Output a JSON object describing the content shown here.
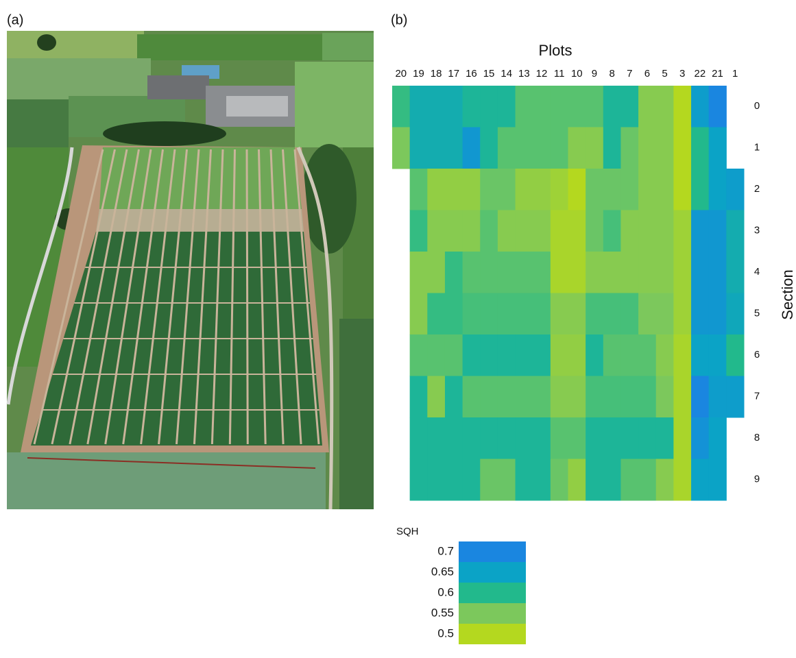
{
  "panel_labels": [
    "(a)",
    "(b)"
  ],
  "chart_data": {
    "type": "heatmap",
    "title": "Plots",
    "y_label": "Section",
    "x_categories": [
      "20",
      "19",
      "18",
      "17",
      "16",
      "15",
      "14",
      "13",
      "12",
      "11",
      "10",
      "9",
      "8",
      "7",
      "6",
      "5",
      "3",
      "22",
      "21",
      "1"
    ],
    "y_categories": [
      "0",
      "1",
      "2",
      "3",
      "4",
      "5",
      "6",
      "7",
      "8",
      "9"
    ],
    "values": [
      [
        0.59,
        0.63,
        0.63,
        0.63,
        0.61,
        0.61,
        0.61,
        0.57,
        0.57,
        0.57,
        0.57,
        0.57,
        0.61,
        0.61,
        0.54,
        0.54,
        0.5,
        0.66,
        0.7,
        null
      ],
      [
        0.55,
        0.63,
        0.63,
        0.63,
        0.67,
        0.61,
        0.57,
        0.57,
        0.57,
        0.57,
        0.54,
        0.54,
        0.61,
        0.56,
        0.54,
        0.54,
        0.5,
        0.6,
        0.65,
        null
      ],
      [
        null,
        0.57,
        0.53,
        0.53,
        0.53,
        0.56,
        0.56,
        0.53,
        0.53,
        0.52,
        0.5,
        0.56,
        0.56,
        0.56,
        0.54,
        0.54,
        0.5,
        0.6,
        0.65,
        0.66
      ],
      [
        null,
        0.59,
        0.54,
        0.54,
        0.54,
        0.57,
        0.54,
        0.54,
        0.54,
        0.51,
        0.51,
        0.56,
        0.58,
        0.54,
        0.54,
        0.54,
        0.52,
        0.67,
        0.67,
        0.63
      ],
      [
        null,
        0.54,
        0.54,
        0.59,
        0.57,
        0.57,
        0.57,
        0.57,
        0.57,
        0.51,
        0.51,
        0.54,
        0.54,
        0.54,
        0.54,
        0.54,
        0.52,
        0.67,
        0.67,
        0.63
      ],
      [
        null,
        0.54,
        0.59,
        0.59,
        0.58,
        0.58,
        0.58,
        0.58,
        0.58,
        0.54,
        0.54,
        0.58,
        0.58,
        0.58,
        0.55,
        0.55,
        0.52,
        0.67,
        0.67,
        0.64
      ],
      [
        null,
        0.57,
        0.57,
        0.57,
        0.61,
        0.61,
        0.61,
        0.61,
        0.61,
        0.53,
        0.53,
        0.61,
        0.57,
        0.57,
        0.57,
        0.54,
        0.51,
        0.65,
        0.65,
        0.6
      ],
      [
        null,
        0.61,
        0.54,
        0.61,
        0.57,
        0.57,
        0.57,
        0.57,
        0.57,
        0.54,
        0.54,
        0.58,
        0.58,
        0.58,
        0.58,
        0.55,
        0.51,
        0.7,
        0.66,
        0.66
      ],
      [
        null,
        0.61,
        0.61,
        0.61,
        0.61,
        0.61,
        0.61,
        0.61,
        0.61,
        0.57,
        0.57,
        0.61,
        0.61,
        0.61,
        0.61,
        0.61,
        0.51,
        0.68,
        0.65,
        null
      ],
      [
        null,
        0.61,
        0.61,
        0.61,
        0.61,
        0.56,
        0.56,
        0.61,
        0.61,
        0.56,
        0.53,
        0.61,
        0.61,
        0.57,
        0.57,
        0.54,
        0.51,
        0.65,
        0.65,
        null
      ]
    ],
    "colorbar": {
      "title": "SQH",
      "ticks": [
        0.7,
        0.65,
        0.6,
        0.55
      ],
      "ticks_last": 0.5,
      "colors": [
        "#1a86e0",
        "#0ba3c6",
        "#22b98c",
        "#7cc85c",
        "#b4d81f"
      ]
    }
  }
}
